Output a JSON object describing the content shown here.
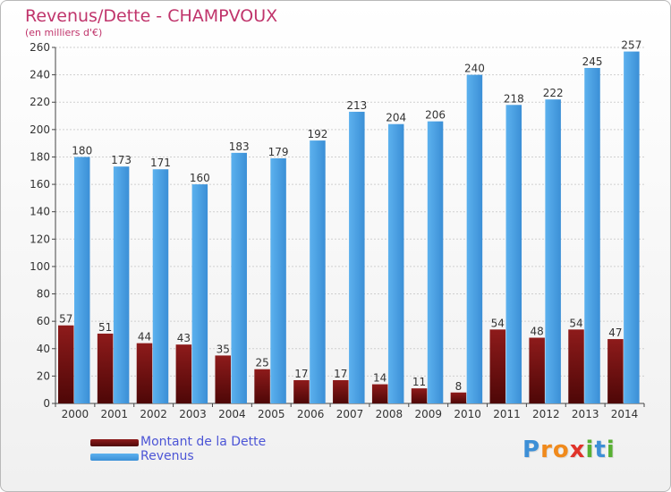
{
  "header": {
    "title": "Revenus/Dette - CHAMPVOUX",
    "subtitle": "(en milliers d'€)"
  },
  "chart_data": {
    "type": "bar",
    "title": "Revenus/Dette - CHAMPVOUX",
    "subtitle": "(en milliers d'€)",
    "xlabel": "",
    "ylabel": "",
    "categories": [
      "2000",
      "2001",
      "2002",
      "2003",
      "2004",
      "2005",
      "2006",
      "2007",
      "2008",
      "2009",
      "2010",
      "2011",
      "2012",
      "2013",
      "2014"
    ],
    "series": [
      {
        "name": "Montant de la Dette",
        "color": "#7a1414",
        "values": [
          57,
          51,
          44,
          43,
          35,
          25,
          17,
          17,
          14,
          11,
          8,
          54,
          48,
          54,
          47
        ]
      },
      {
        "name": "Revenus",
        "color": "#4a9fe0",
        "values": [
          180,
          173,
          171,
          160,
          183,
          179,
          192,
          213,
          204,
          206,
          240,
          218,
          222,
          245,
          257
        ]
      }
    ],
    "ylim": [
      0,
      260
    ],
    "yticks": [
      0,
      20,
      40,
      60,
      80,
      100,
      120,
      140,
      160,
      180,
      200,
      220,
      240,
      260
    ],
    "grid": true,
    "legend": "bottom-left"
  },
  "legend": {
    "items": [
      {
        "label": "Montant de la Dette",
        "color": "#7a1414"
      },
      {
        "label": "Revenus",
        "color": "#4a9fe0"
      }
    ]
  },
  "logo": {
    "letters": [
      {
        "ch": "P",
        "color": "#3d8fd6"
      },
      {
        "ch": "r",
        "color": "#f08a1c"
      },
      {
        "ch": "o",
        "color": "#f08a1c"
      },
      {
        "ch": "x",
        "color": "#e0332a"
      },
      {
        "ch": "i",
        "color": "#58b033"
      },
      {
        "ch": "t",
        "color": "#3d8fd6"
      },
      {
        "ch": "i",
        "color": "#58b033"
      }
    ]
  }
}
